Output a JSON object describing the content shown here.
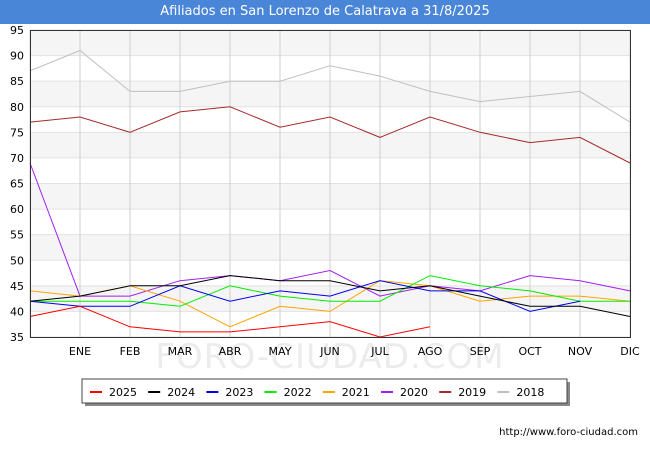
{
  "page": {
    "title": "Afiliados en San Lorenzo de Calatrava a 31/8/2025",
    "source": "http://www.foro-ciudad.com",
    "watermark": "FORO-CIUDAD.COM"
  },
  "chart_data": {
    "type": "line",
    "title": "Afiliados en San Lorenzo de Calatrava a 31/8/2025",
    "xlabel": "",
    "ylabel": "",
    "x": [
      "",
      "ENE",
      "FEB",
      "MAR",
      "ABR",
      "MAY",
      "JUN",
      "JUL",
      "AGO",
      "SEP",
      "OCT",
      "NOV",
      "DIC"
    ],
    "ylim": [
      35,
      95
    ],
    "yticks": [
      35,
      40,
      45,
      50,
      55,
      60,
      65,
      70,
      75,
      80,
      85,
      90,
      95
    ],
    "grid": true,
    "legend_position": "bottom",
    "series": [
      {
        "name": "2025",
        "color": "#ff0000",
        "values": [
          39,
          41,
          37,
          36,
          36,
          37,
          38,
          35,
          37,
          null,
          null,
          null,
          null
        ]
      },
      {
        "name": "2024",
        "color": "#000000",
        "values": [
          42,
          43,
          45,
          45,
          47,
          46,
          46,
          44,
          45,
          43,
          41,
          41,
          39
        ]
      },
      {
        "name": "2023",
        "color": "#0000ee",
        "values": [
          42,
          41,
          41,
          45,
          42,
          44,
          43,
          46,
          44,
          44,
          40,
          42,
          null
        ]
      },
      {
        "name": "2022",
        "color": "#00ee00",
        "values": [
          42,
          42,
          42,
          41,
          45,
          43,
          42,
          42,
          47,
          45,
          44,
          42,
          42
        ]
      },
      {
        "name": "2021",
        "color": "#ffa500",
        "values": [
          44,
          43,
          45,
          42,
          37,
          41,
          40,
          46,
          45,
          42,
          43,
          43,
          42
        ]
      },
      {
        "name": "2020",
        "color": "#a020f0",
        "values": [
          69,
          43,
          43,
          46,
          47,
          46,
          48,
          43,
          45,
          44,
          47,
          46,
          44
        ]
      },
      {
        "name": "2019",
        "color": "#a52a2a",
        "values": [
          77,
          78,
          75,
          79,
          80,
          76,
          78,
          74,
          78,
          75,
          73,
          74,
          69
        ]
      },
      {
        "name": "2018",
        "color": "#c0c0c0",
        "values": [
          87,
          91,
          83,
          83,
          85,
          85,
          88,
          86,
          83,
          81,
          82,
          83,
          77
        ]
      }
    ]
  }
}
